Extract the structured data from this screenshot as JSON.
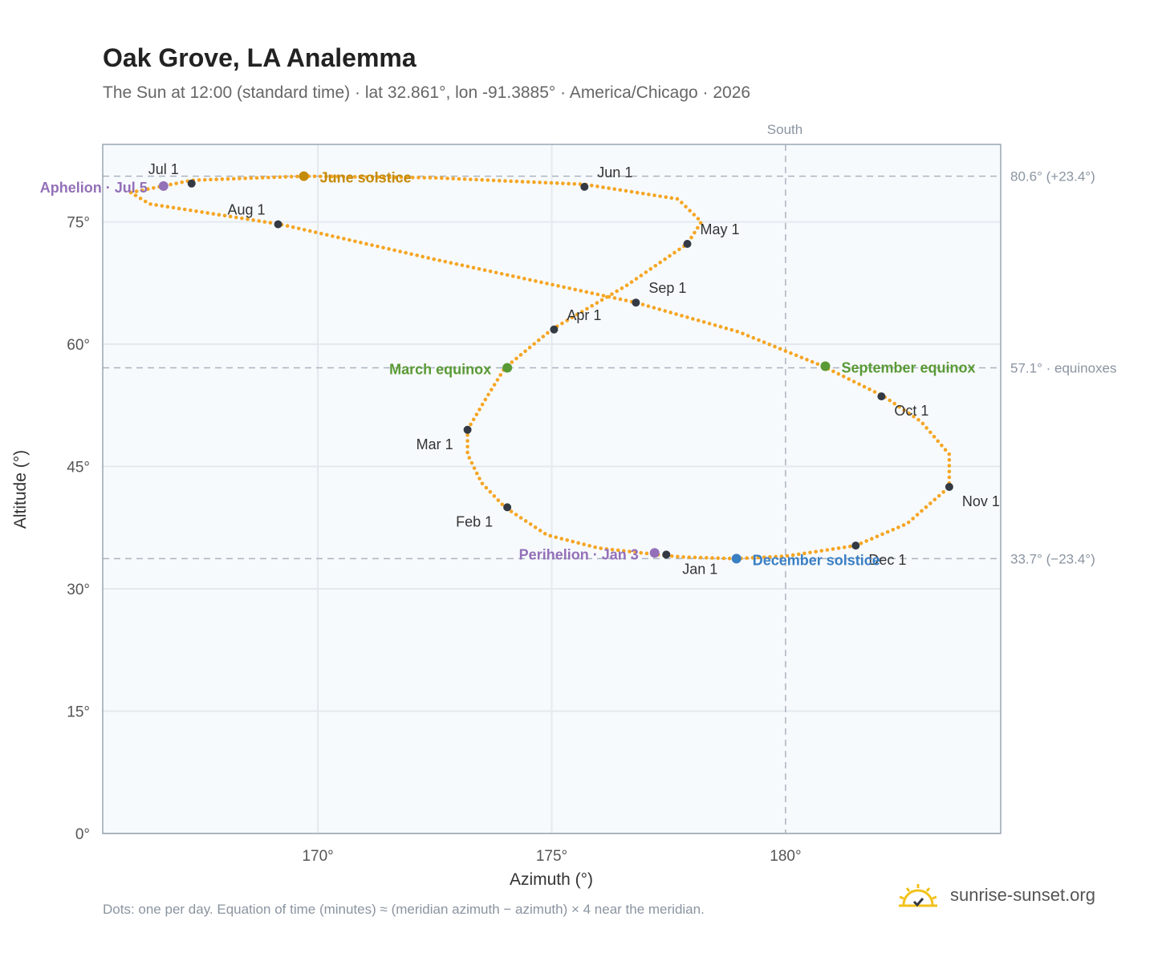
{
  "title": "Oak Grove, LA Analemma",
  "subtitle": "The Sun at 12:00 (standard time) · lat 32.861°, lon -91.3885° · America/Chicago · 2026",
  "footnote": "Dots: one per day. Equation of time (minutes) ≈ (meridian azimuth − azimuth) × 4 near the meridian.",
  "brand": "sunrise-sunset.org",
  "colors": {
    "path": "#f5a623",
    "month_dot": "#333a44",
    "solstice_june": "#c48a0a",
    "equinox": "#5a9a35",
    "solstice_december": "#3a7fc4",
    "apsis": "#9370b8",
    "refline": "#aab4bf",
    "plot_bg": "#f7fafd",
    "axis_text": "#555555"
  },
  "chart_data": {
    "type": "scatter",
    "xlabel": "Azimuth (°)",
    "ylabel": "Altitude (°)",
    "xlim": [
      165.4,
      184.6
    ],
    "ylim": [
      0,
      84.5
    ],
    "x_ticks": [
      170,
      175,
      180
    ],
    "x_tick_labels": [
      "170°",
      "175°",
      "180°"
    ],
    "y_ticks": [
      0,
      15,
      30,
      45,
      60,
      75
    ],
    "y_tick_labels": [
      "0°",
      "15°",
      "30°",
      "45°",
      "60°",
      "75°"
    ],
    "grid": true,
    "south_label": "South",
    "south_azimuth": 180,
    "reference_lines": [
      {
        "value": 80.6,
        "label": "80.6° (+23.4°)"
      },
      {
        "value": 57.1,
        "label": "57.1° · equinoxes"
      },
      {
        "value": 33.7,
        "label": "33.7° (−23.4°)"
      }
    ],
    "path_points": [
      [
        177.4,
        34.1
      ],
      [
        176.0,
        35.0
      ],
      [
        174.9,
        36.6
      ],
      [
        174.0,
        40.0
      ],
      [
        173.5,
        43.0
      ],
      [
        173.2,
        46.5
      ],
      [
        173.2,
        49.5
      ],
      [
        173.6,
        53.4
      ],
      [
        174.0,
        57.1
      ],
      [
        175.0,
        61.8
      ],
      [
        176.6,
        67.2
      ],
      [
        177.9,
        72.3
      ],
      [
        178.2,
        75.0
      ],
      [
        177.7,
        77.8
      ],
      [
        175.7,
        79.6
      ],
      [
        172.5,
        80.4
      ],
      [
        169.7,
        80.6
      ],
      [
        167.3,
        80.1
      ],
      [
        166.7,
        79.4
      ],
      [
        166.0,
        78.6
      ],
      [
        166.4,
        77.2
      ],
      [
        169.2,
        74.7
      ],
      [
        172.5,
        70.4
      ],
      [
        176.8,
        65.1
      ],
      [
        179.0,
        61.5
      ],
      [
        180.8,
        57.3
      ],
      [
        182.1,
        53.6
      ],
      [
        182.9,
        50.5
      ],
      [
        183.5,
        46.5
      ],
      [
        183.5,
        42.5
      ],
      [
        182.6,
        38.0
      ],
      [
        181.5,
        35.3
      ],
      [
        180.0,
        34.0
      ],
      [
        178.9,
        33.7
      ],
      [
        177.8,
        33.9
      ],
      [
        177.4,
        34.1
      ]
    ],
    "month_markers": [
      {
        "label": "Jan 1",
        "az": 177.45,
        "alt": 34.2,
        "anchor": "middle",
        "dx": 42,
        "dy": 24
      },
      {
        "label": "Feb 1",
        "az": 174.05,
        "alt": 40.0,
        "anchor": "end",
        "dx": -18,
        "dy": 24
      },
      {
        "label": "Mar 1",
        "az": 173.2,
        "alt": 49.5,
        "anchor": "end",
        "dx": -18,
        "dy": 24
      },
      {
        "label": "Apr 1",
        "az": 175.05,
        "alt": 61.8,
        "anchor": "start",
        "dx": 16,
        "dy": -12
      },
      {
        "label": "May 1",
        "az": 177.9,
        "alt": 72.3,
        "anchor": "start",
        "dx": 16,
        "dy": -12
      },
      {
        "label": "Jun 1",
        "az": 175.7,
        "alt": 79.3,
        "anchor": "start",
        "dx": 16,
        "dy": -12
      },
      {
        "label": "Jul 1",
        "az": 167.3,
        "alt": 79.7,
        "anchor": "end",
        "dx": -16,
        "dy": -12
      },
      {
        "label": "Aug 1",
        "az": 169.15,
        "alt": 74.7,
        "anchor": "end",
        "dx": -16,
        "dy": -12
      },
      {
        "label": "Sep 1",
        "az": 176.8,
        "alt": 65.1,
        "anchor": "start",
        "dx": 16,
        "dy": -12
      },
      {
        "label": "Oct 1",
        "az": 182.05,
        "alt": 53.6,
        "anchor": "start",
        "dx": 16,
        "dy": 24
      },
      {
        "label": "Nov 1",
        "az": 183.5,
        "alt": 42.5,
        "anchor": "start",
        "dx": 16,
        "dy": 24
      },
      {
        "label": "Dec 1",
        "az": 181.5,
        "alt": 35.3,
        "anchor": "start",
        "dx": 16,
        "dy": 24
      }
    ],
    "events": [
      {
        "label": "June solstice",
        "az": 169.7,
        "alt": 80.6,
        "color_key": "solstice_june",
        "anchor": "start",
        "dx": 20,
        "dy": 8
      },
      {
        "label": "March equinox",
        "az": 174.05,
        "alt": 57.1,
        "color_key": "equinox",
        "anchor": "end",
        "dx": -20,
        "dy": 8
      },
      {
        "label": "September equinox",
        "az": 180.85,
        "alt": 57.3,
        "color_key": "equinox",
        "anchor": "start",
        "dx": 20,
        "dy": 8
      },
      {
        "label": "December solstice",
        "az": 178.95,
        "alt": 33.7,
        "color_key": "solstice_december",
        "anchor": "start",
        "dx": 20,
        "dy": 8
      },
      {
        "label": "Aphelion · Jul 5",
        "az": 166.7,
        "alt": 79.4,
        "color_key": "apsis",
        "anchor": "end",
        "dx": -20,
        "dy": 8
      },
      {
        "label": "Perihelion · Jan 3",
        "az": 177.2,
        "alt": 34.4,
        "color_key": "apsis",
        "anchor": "end",
        "dx": -20,
        "dy": 8
      }
    ]
  }
}
